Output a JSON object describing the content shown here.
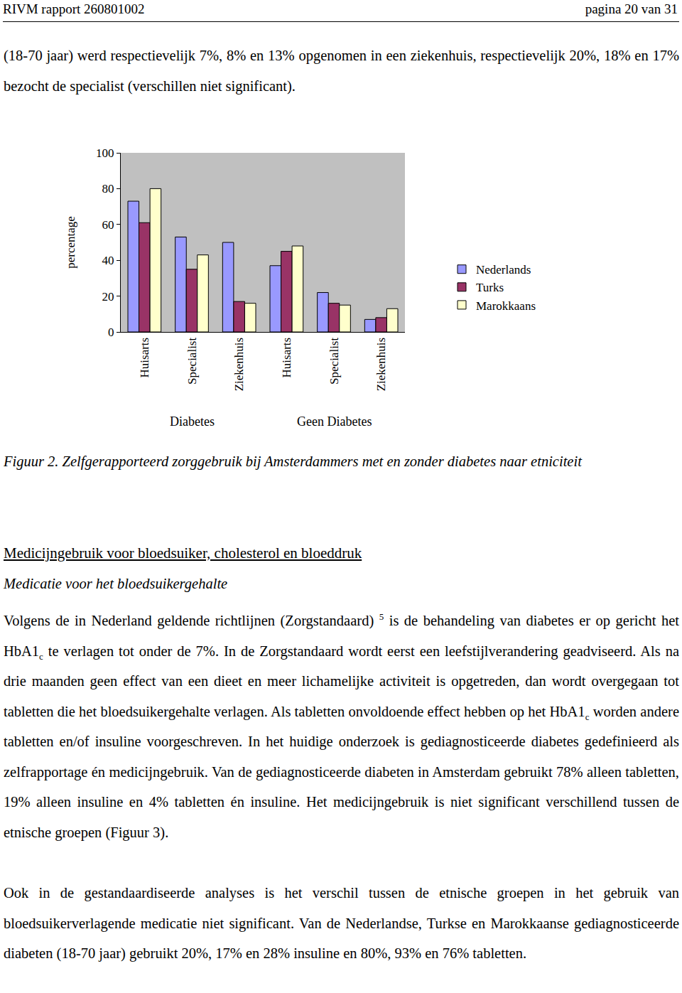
{
  "header": {
    "left": "RIVM rapport 260801002",
    "right": "pagina 20 van 31"
  },
  "intro": [
    "(18-70 jaar) werd respectievelijk 7%, 8% en 13% opgenomen in een ziekenhuis, respectievelijk 20%, 18% en 17% bezocht de specialist (verschillen niet significant)."
  ],
  "chart_data": {
    "type": "bar",
    "categories": [
      "Huisarts",
      "Specialist",
      "Ziekenhuis",
      "Huisarts",
      "Specialist",
      "Ziekenhuis"
    ],
    "groups": [
      "Diabetes",
      "Diabetes",
      "Diabetes",
      "Geen Diabetes",
      "Geen Diabetes",
      "Geen Diabetes"
    ],
    "y_label": "percentage",
    "series": [
      {
        "name": "Nederlands",
        "color": "#9999ff",
        "values": [
          73,
          53,
          50,
          37,
          22,
          7
        ]
      },
      {
        "name": "Turks",
        "color": "#993366",
        "values": [
          61,
          35,
          17,
          45,
          16,
          8
        ]
      },
      {
        "name": "Marokkaans",
        "color": "#ffffcc",
        "values": [
          80,
          43,
          16,
          48,
          15,
          13
        ]
      }
    ],
    "ylim": [
      0,
      100
    ],
    "yticks": [
      0,
      20,
      40,
      60,
      80,
      100
    ],
    "grid": false,
    "legend": "right"
  },
  "caption": "Figuur 2. Zelfgerapporteerd zorggebruik bij Amsterdammers met en zonder diabetes naar etniciteit",
  "section": {
    "heading": "Medicijngebruik voor bloedsuiker, cholesterol en bloeddruk",
    "subheading": "Medicatie voor het bloedsuikergehalte",
    "paragraphs": [
      [
        "Volgens de in Nederland geldende richtlijnen (Zorgstandaard) ",
        {
          "sup": "5"
        },
        " is de behandeling van diabetes er op gericht het HbA1",
        {
          "sub": "c"
        },
        " te verlagen tot onder de 7%. In de Zorgstandaard wordt eerst een leefstijlverandering geadviseerd. Als na drie maanden geen effect van een dieet en meer lichamelijke activiteit is opgetreden, dan wordt overgegaan tot tabletten die het bloedsuikergehalte verlagen. Als tabletten onvoldoende effect hebben op het HbA1",
        {
          "sub": "c"
        },
        " worden andere tabletten en/of  insuline voorgeschreven. In het huidige onderzoek is gediagnosticeerde diabetes gedefinieerd als zelfrapportage én medicijngebruik. Van de gediagnosticeerde diabeten in Amsterdam gebruikt 78% alleen tabletten, 19% alleen insuline en 4% tabletten én insuline. Het medicijngebruik is niet significant verschillend tussen de etnische groepen (Figuur 3)."
      ],
      [
        "Ook in de gestandaardiseerde analyses is het verschil tussen de etnische groepen in het gebruik van bloedsuikerverlagende medicatie niet significant. Van de Nederlandse, Turkse en Marokkaanse gediagnosticeerde diabeten (18-70 jaar) gebruikt 20%, 17% en 28% insuline en 80%, 93% en 76% tabletten."
      ]
    ]
  }
}
